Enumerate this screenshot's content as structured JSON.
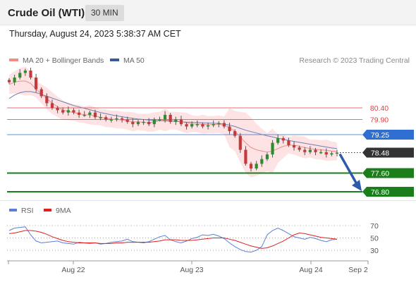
{
  "header": {
    "title": "Crude Oil (WTI)",
    "interval": "30 MIN",
    "timestamp": "Thursday, August 24, 2023 5:38:37 AM CET"
  },
  "legend": {
    "ma20_label": "MA 20 + Bollinger Bands",
    "ma20_color": "#f28b82",
    "ma50_label": "MA 50",
    "ma50_color": "#3b5998",
    "credit": "Research © 2023 Trading Central"
  },
  "levels": [
    {
      "value": "80.40",
      "style": "text-red",
      "color": "#e04040"
    },
    {
      "value": "79.90",
      "style": "text-red",
      "color": "#e04040"
    },
    {
      "value": "79.25",
      "style": "tag-blue",
      "color": "#2f6fd1"
    },
    {
      "value": "78.48",
      "style": "tag-dark",
      "color": "#333333"
    },
    {
      "value": "77.60",
      "style": "tag-green",
      "color": "#1a7f1a"
    },
    {
      "value": "76.80",
      "style": "tag-green",
      "color": "#1a7f1a"
    }
  ],
  "forecast": {
    "direction": "down",
    "target": "76.80",
    "color": "#2f5aa8"
  },
  "rsi": {
    "rsi_label": "RSI",
    "rsi_color": "#5b7fd6",
    "ma_label": "9MA",
    "ma_color": "#e02020",
    "ticks": [
      "70",
      "50",
      "30"
    ]
  },
  "x_axis": {
    "labels": [
      "Aug 22",
      "Aug 23",
      "Aug 24",
      "Sep 2"
    ]
  },
  "chart_data": {
    "type": "candlestick",
    "symbol": "Crude Oil (WTI)",
    "interval": "30 MIN",
    "horizontal_levels": [
      80.4,
      79.9,
      79.25,
      78.48,
      77.6,
      76.8
    ],
    "last_price": 78.48,
    "target": 76.8,
    "close": [
      81.5,
      81.7,
      81.9,
      82.0,
      81.7,
      81.2,
      80.9,
      80.6,
      80.4,
      80.3,
      80.2,
      80.3,
      80.2,
      80.1,
      80.1,
      80.2,
      80.0,
      80.0,
      79.9,
      79.9,
      79.95,
      79.9,
      79.8,
      79.7,
      79.8,
      79.8,
      79.7,
      79.9,
      79.9,
      80.1,
      79.8,
      79.9,
      79.7,
      79.6,
      79.7,
      79.7,
      79.6,
      79.65,
      79.7,
      79.75,
      79.6,
      79.4,
      79.2,
      78.6,
      78.0,
      77.8,
      78.0,
      78.2,
      78.4,
      78.9,
      79.1,
      79.0,
      78.8,
      78.7,
      78.6,
      78.5,
      78.6,
      78.5,
      78.5,
      78.4,
      78.45,
      78.48
    ],
    "ma20": [
      81.4,
      81.5,
      81.55,
      81.55,
      81.45,
      81.2,
      81.0,
      80.8,
      80.6,
      80.45,
      80.3,
      80.25,
      80.2,
      80.15,
      80.1,
      80.1,
      80.05,
      80.0,
      79.95,
      79.92,
      79.9,
      79.88,
      79.85,
      79.8,
      79.8,
      79.78,
      79.76,
      79.8,
      79.85,
      79.88,
      79.85,
      79.85,
      79.8,
      79.75,
      79.72,
      79.7,
      79.7,
      79.68,
      79.68,
      79.7,
      79.65,
      79.55,
      79.4,
      79.15,
      78.9,
      78.7,
      78.6,
      78.55,
      78.5,
      78.55,
      78.65,
      78.75,
      78.8,
      78.8,
      78.75,
      78.7,
      78.65,
      78.62,
      78.6,
      78.58,
      78.55,
      78.53
    ],
    "ma50": [
      80.8,
      80.95,
      81.05,
      81.1,
      81.1,
      81.05,
      80.98,
      80.9,
      80.82,
      80.74,
      80.66,
      80.58,
      80.5,
      80.44,
      80.38,
      80.32,
      80.26,
      80.2,
      80.15,
      80.1,
      80.06,
      80.02,
      79.98,
      79.95,
      79.92,
      79.9,
      79.88,
      79.86,
      79.85,
      79.84,
      79.83,
      79.82,
      79.8,
      79.79,
      79.78,
      79.77,
      79.76,
      79.75,
      79.74,
      79.73,
      79.7,
      79.66,
      79.6,
      79.52,
      79.44,
      79.38,
      79.32,
      79.26,
      79.2,
      79.15,
      79.1,
      79.05,
      79.0,
      78.96,
      78.92,
      78.88,
      78.84,
      78.8,
      78.76,
      78.72,
      78.68,
      78.65
    ],
    "rsi": [
      62,
      66,
      67,
      68,
      55,
      45,
      42,
      43,
      44,
      45,
      42,
      41,
      40,
      43,
      42,
      41,
      42,
      40,
      41,
      43,
      44,
      45,
      48,
      44,
      43,
      42,
      44,
      48,
      52,
      54,
      47,
      44,
      42,
      45,
      49,
      51,
      55,
      54,
      56,
      53,
      49,
      42,
      36,
      31,
      28,
      27,
      30,
      36,
      55,
      62,
      66,
      62,
      57,
      52,
      50,
      48,
      51,
      49,
      46,
      44,
      47,
      48
    ],
    "rsi_ma9": [
      57,
      58,
      60,
      62,
      62,
      61,
      59,
      56,
      52,
      49,
      46,
      44,
      43,
      42,
      42,
      42,
      42,
      41,
      41,
      41,
      42,
      42,
      43,
      43,
      43,
      43,
      43,
      44,
      45,
      47,
      47,
      47,
      46,
      46,
      46,
      47,
      48,
      49,
      50,
      50,
      50,
      48,
      46,
      43,
      40,
      37,
      35,
      33,
      34,
      37,
      41,
      45,
      50,
      55,
      58,
      57,
      55,
      53,
      51,
      50,
      49,
      48
    ],
    "x_labels": [
      "Aug 22",
      "Aug 23",
      "Aug 24",
      "Sep 2"
    ],
    "rsi_levels": [
      70,
      50,
      30
    ]
  }
}
